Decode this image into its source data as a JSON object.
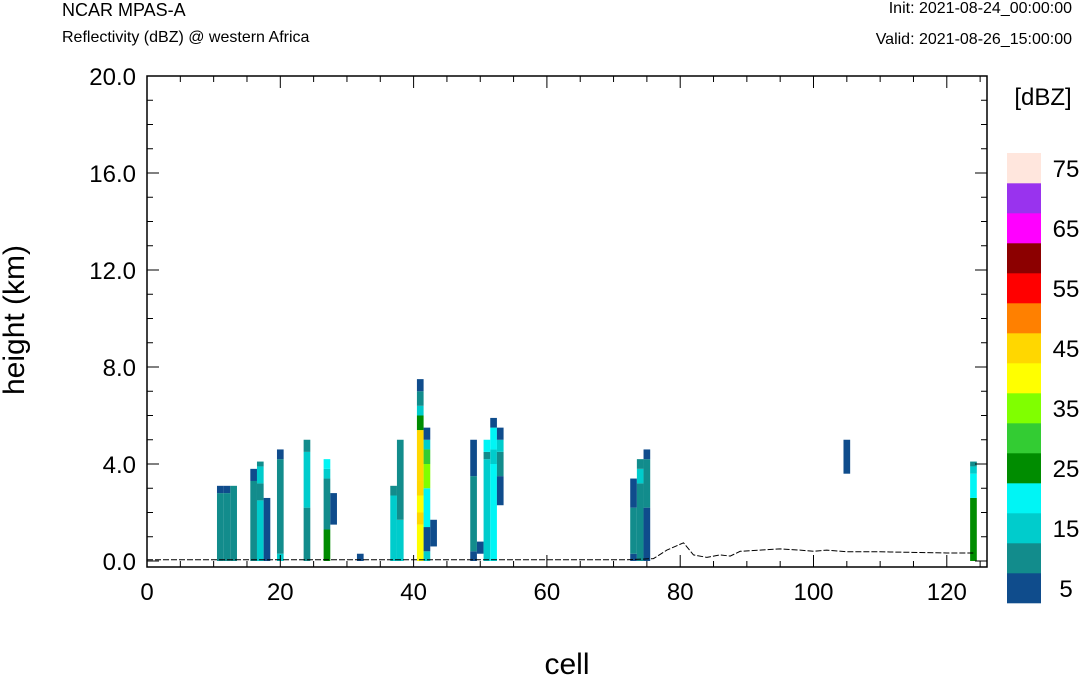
{
  "header": {
    "model": "NCAR MPAS-A",
    "field": "Reflectivity (dBZ) @ western Africa",
    "init": "Init: 2021-08-24_00:00:00",
    "valid": "Valid: 2021-08-26_15:00:00"
  },
  "chart_data": {
    "type": "heatmap",
    "xlabel": "cell",
    "ylabel": "height (km)",
    "xlim": [
      0,
      126
    ],
    "ylim": [
      -0.25,
      20
    ],
    "xticks": [
      0,
      20,
      40,
      60,
      80,
      100,
      120
    ],
    "xtick_labels": [
      "0",
      "20",
      "40",
      "60",
      "80",
      "100",
      "120"
    ],
    "yticks": [
      0,
      4,
      8,
      12,
      16,
      20
    ],
    "ytick_labels": [
      "0.0",
      "4.0",
      "8.0",
      "12.0",
      "16.0",
      "20.0"
    ],
    "colorbar": {
      "title": "[dBZ]",
      "levels": [
        5,
        10,
        15,
        20,
        25,
        30,
        35,
        40,
        45,
        50,
        55,
        60,
        65,
        70,
        75
      ],
      "tick_labels": [
        "5",
        "15",
        "25",
        "35",
        "45",
        "55",
        "65",
        "75"
      ],
      "colors": [
        "#0f4c8c",
        "#128c8c",
        "#00cccc",
        "#00f5f5",
        "#008c00",
        "#33cc33",
        "#80ff00",
        "#ffff00",
        "#ffd700",
        "#ff8000",
        "#ff0000",
        "#8c0000",
        "#ff00ff",
        "#9933ee",
        "#ffe6dd"
      ]
    },
    "columns": [
      {
        "x": 11,
        "segments": [
          [
            0,
            2.8,
            10
          ],
          [
            2.8,
            3.1,
            5
          ]
        ]
      },
      {
        "x": 12,
        "segments": [
          [
            0,
            2.8,
            10
          ],
          [
            2.8,
            3.1,
            5
          ]
        ]
      },
      {
        "x": 13,
        "segments": [
          [
            0,
            3.1,
            10
          ]
        ]
      },
      {
        "x": 16,
        "segments": [
          [
            0,
            3.3,
            10
          ],
          [
            3.3,
            3.8,
            5
          ]
        ]
      },
      {
        "x": 17,
        "segments": [
          [
            0,
            2.5,
            15
          ],
          [
            2.5,
            3.2,
            10
          ],
          [
            3.2,
            3.9,
            15
          ],
          [
            3.9,
            4.1,
            10
          ]
        ]
      },
      {
        "x": 18,
        "segments": [
          [
            0,
            2.6,
            5
          ]
        ]
      },
      {
        "x": 20,
        "segments": [
          [
            0,
            0.3,
            15
          ],
          [
            0.3,
            4.2,
            10
          ],
          [
            4.2,
            4.6,
            5
          ]
        ]
      },
      {
        "x": 24,
        "segments": [
          [
            0,
            2.2,
            10
          ],
          [
            2.2,
            4.5,
            15
          ],
          [
            4.5,
            5.0,
            10
          ]
        ]
      },
      {
        "x": 27,
        "segments": [
          [
            0,
            1.3,
            25
          ],
          [
            1.3,
            3.4,
            10
          ],
          [
            3.4,
            3.8,
            15
          ],
          [
            3.8,
            4.2,
            20
          ]
        ]
      },
      {
        "x": 28,
        "segments": [
          [
            1.5,
            2.8,
            5
          ]
        ]
      },
      {
        "x": 32,
        "segments": [
          [
            0,
            0.3,
            5
          ]
        ]
      },
      {
        "x": 37,
        "segments": [
          [
            0,
            2.7,
            15
          ],
          [
            2.7,
            3.1,
            10
          ]
        ]
      },
      {
        "x": 38,
        "segments": [
          [
            0,
            1.7,
            15
          ],
          [
            1.7,
            5.0,
            10
          ]
        ]
      },
      {
        "x": 41,
        "segments": [
          [
            0,
            1.5,
            40
          ],
          [
            1.5,
            2.0,
            45
          ],
          [
            2.0,
            2.7,
            40
          ],
          [
            2.7,
            3.3,
            45
          ],
          [
            3.3,
            5.4,
            45
          ],
          [
            5.4,
            6.0,
            25
          ],
          [
            6.0,
            6.4,
            15
          ],
          [
            6.4,
            7.0,
            10
          ],
          [
            7.0,
            7.5,
            5
          ]
        ]
      },
      {
        "x": 42,
        "segments": [
          [
            0,
            0.4,
            15
          ],
          [
            0.4,
            1.4,
            5
          ],
          [
            1.4,
            3.0,
            20
          ],
          [
            3.0,
            4.0,
            35
          ],
          [
            4.0,
            4.6,
            30
          ],
          [
            4.6,
            5.0,
            15
          ],
          [
            5.0,
            5.5,
            5
          ]
        ]
      },
      {
        "x": 43,
        "segments": [
          [
            0.6,
            1.7,
            5
          ]
        ]
      },
      {
        "x": 49,
        "segments": [
          [
            0,
            0.4,
            5
          ],
          [
            0.4,
            3.5,
            10
          ],
          [
            3.5,
            5.0,
            5
          ]
        ]
      },
      {
        "x": 50,
        "segments": [
          [
            0.3,
            0.8,
            5
          ]
        ]
      },
      {
        "x": 51,
        "segments": [
          [
            0,
            4.2,
            15
          ],
          [
            4.2,
            4.5,
            10
          ],
          [
            4.5,
            5.0,
            20
          ]
        ]
      },
      {
        "x": 52,
        "segments": [
          [
            0,
            4.0,
            20
          ],
          [
            4.0,
            4.6,
            15
          ],
          [
            4.6,
            5.5,
            20
          ],
          [
            5.5,
            5.9,
            5
          ]
        ]
      },
      {
        "x": 53,
        "segments": [
          [
            2.3,
            3.5,
            5
          ],
          [
            3.5,
            4.5,
            10
          ],
          [
            4.5,
            5.0,
            15
          ],
          [
            5.0,
            5.5,
            5
          ]
        ]
      },
      {
        "x": 73,
        "segments": [
          [
            0,
            0.3,
            5
          ],
          [
            0.3,
            2.2,
            10
          ],
          [
            2.2,
            3.4,
            5
          ]
        ]
      },
      {
        "x": 74,
        "segments": [
          [
            0,
            3.2,
            10
          ],
          [
            3.2,
            3.8,
            15
          ],
          [
            3.8,
            4.2,
            10
          ]
        ]
      },
      {
        "x": 75,
        "segments": [
          [
            0,
            2.2,
            5
          ],
          [
            2.2,
            4.2,
            10
          ],
          [
            4.2,
            4.6,
            5
          ]
        ]
      },
      {
        "x": 105,
        "segments": [
          [
            3.6,
            5.0,
            5
          ]
        ]
      },
      {
        "x": 124,
        "segments": [
          [
            0,
            2.6,
            25
          ],
          [
            2.6,
            3.6,
            20
          ],
          [
            3.6,
            3.9,
            15
          ],
          [
            3.9,
            4.1,
            10
          ]
        ]
      }
    ],
    "terrain": [
      [
        0,
        0.05
      ],
      [
        72,
        0.05
      ],
      [
        76,
        0.1
      ],
      [
        78,
        0.45
      ],
      [
        80.5,
        0.75
      ],
      [
        82,
        0.25
      ],
      [
        84,
        0.15
      ],
      [
        86,
        0.25
      ],
      [
        87.5,
        0.2
      ],
      [
        89,
        0.4
      ],
      [
        92,
        0.45
      ],
      [
        95,
        0.5
      ],
      [
        98,
        0.45
      ],
      [
        100,
        0.4
      ],
      [
        102,
        0.45
      ],
      [
        105,
        0.38
      ],
      [
        110,
        0.38
      ],
      [
        116,
        0.35
      ],
      [
        120,
        0.33
      ],
      [
        124,
        0.33
      ]
    ]
  }
}
